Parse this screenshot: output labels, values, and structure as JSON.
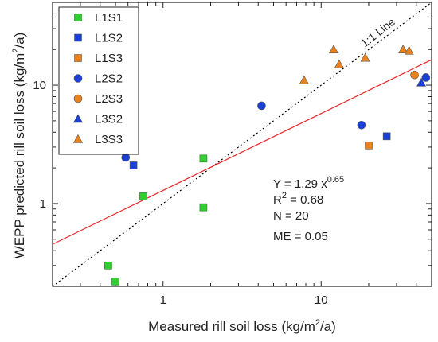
{
  "chart_data": {
    "type": "scatter",
    "xscale": "log",
    "yscale": "log",
    "xlim": [
      0.2,
      50
    ],
    "ylim": [
      0.2,
      50
    ],
    "xlabel_main": "Measured rill soil loss (kg/m",
    "xlabel_sup": "2",
    "xlabel_tail": "/a)",
    "ylabel_main": "WEPP predicted rill soil loss (kg/m",
    "ylabel_sup": "2",
    "ylabel_tail": "/a)",
    "x_ticks": [
      1,
      10
    ],
    "x_tick_labels": [
      "1",
      "10"
    ],
    "y_ticks": [
      1,
      10
    ],
    "y_tick_labels": [
      "1",
      "10"
    ],
    "legend_position": "top-left",
    "series": [
      {
        "name": "L1S1",
        "marker": "square",
        "color": "#33cc33",
        "points": [
          [
            0.45,
            0.3
          ],
          [
            0.5,
            0.22
          ],
          [
            0.75,
            1.15
          ],
          [
            1.8,
            2.4
          ],
          [
            1.8,
            0.93
          ]
        ]
      },
      {
        "name": "L1S2",
        "marker": "square",
        "color": "#1a3fd6",
        "points": [
          [
            0.65,
            2.1
          ],
          [
            26,
            3.7
          ]
        ]
      },
      {
        "name": "L1S3",
        "marker": "square",
        "color": "#e8821e",
        "points": [
          [
            20,
            3.1
          ]
        ]
      },
      {
        "name": "L2S2",
        "marker": "circle",
        "color": "#1a3fd6",
        "points": [
          [
            0.58,
            2.45
          ],
          [
            4.2,
            6.7
          ],
          [
            18,
            4.6
          ],
          [
            46,
            11.6
          ]
        ]
      },
      {
        "name": "L2S3",
        "marker": "circle",
        "color": "#e8821e",
        "points": [
          [
            39,
            12.2
          ]
        ]
      },
      {
        "name": "L3S2",
        "marker": "triangle",
        "color": "#1a3fd6",
        "points": [
          [
            43,
            10.5
          ]
        ]
      },
      {
        "name": "L3S3",
        "marker": "triangle",
        "color": "#e8821e",
        "points": [
          [
            7.8,
            11
          ],
          [
            12,
            20
          ],
          [
            13,
            15
          ],
          [
            19,
            17
          ],
          [
            33,
            20
          ],
          [
            36,
            19.5
          ]
        ]
      }
    ],
    "reference_line": {
      "label": "1:1 Line",
      "style": "dotted",
      "color": "#000000"
    },
    "fit_line": {
      "coef": 1.29,
      "exponent": 0.65,
      "color": "#e8262a"
    },
    "stats": {
      "equation_main": "Y = 1.29 x",
      "equation_exp": "0.65",
      "r2_prefix": "R",
      "r2_sup": "2",
      "r2_value": " = 0.68",
      "n_text": "N = 20",
      "me_text": "ME = 0.05"
    }
  }
}
